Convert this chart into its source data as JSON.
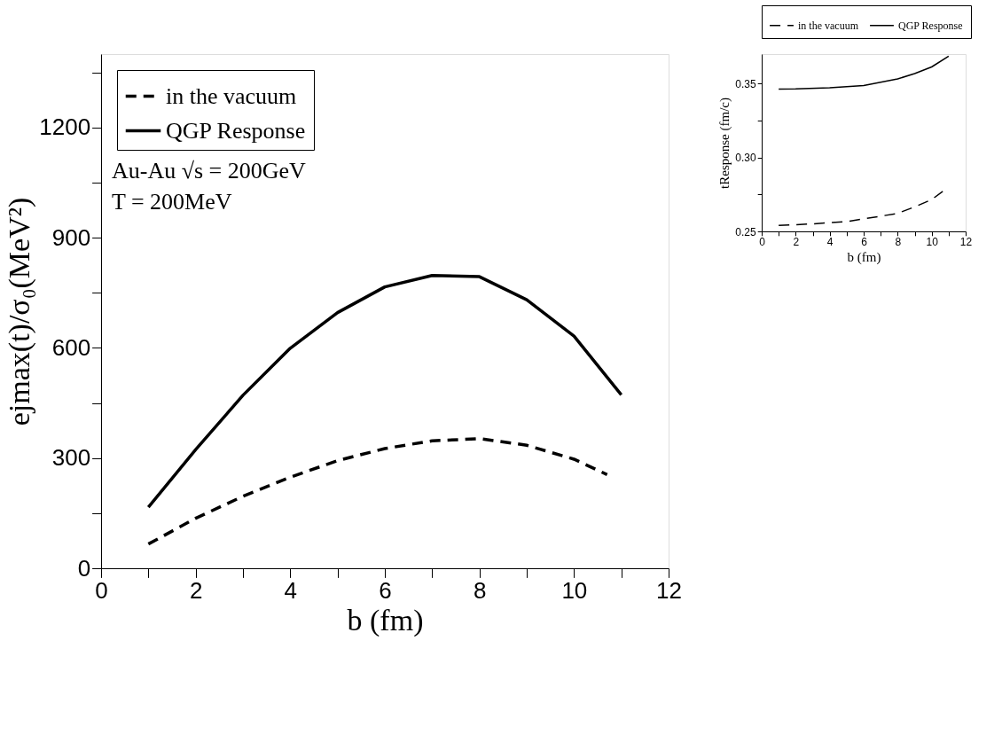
{
  "chart_data": [
    {
      "type": "line",
      "xlabel": "b (fm)",
      "ylabel": "ejmax(t)/σ₀(MeV²)",
      "xlim": [
        0,
        12
      ],
      "ylim": [
        0,
        1400
      ],
      "xticks": [
        0,
        {
          "value": 1,
          "label": null
        },
        2,
        {
          "value": 3,
          "label": null
        },
        4,
        {
          "value": 5,
          "label": null
        },
        6,
        {
          "value": 7,
          "label": null
        },
        8,
        {
          "value": 9,
          "label": null
        },
        10,
        {
          "value": 11,
          "label": null
        },
        12
      ],
      "yticks": [
        0,
        {
          "value": 150,
          "label": null
        },
        300,
        {
          "value": 450,
          "label": null
        },
        600,
        {
          "value": 750,
          "label": null
        },
        900,
        {
          "value": 1050,
          "label": null
        },
        1200,
        {
          "value": 1350,
          "label": null
        }
      ],
      "grid": false,
      "legend": "top left",
      "annotations": [
        "Au-Au √s = 200GeV",
        "T = 200MeV"
      ],
      "series": [
        {
          "name": "in the vacuum",
          "color": "#000000",
          "line_style": "dashed",
          "x": [
            1,
            2,
            3,
            4,
            5,
            6,
            7,
            8,
            9,
            10,
            10.7
          ],
          "values": [
            66,
            136,
            196,
            248,
            293,
            326,
            347,
            353,
            335,
            297,
            255
          ]
        },
        {
          "name": "QGP Response",
          "color": "#000000",
          "line_style": "solid",
          "x": [
            1,
            2,
            3,
            4,
            5,
            6,
            7,
            8,
            9,
            10,
            11
          ],
          "values": [
            166,
            323,
            471,
            599,
            696,
            766,
            797,
            794,
            731,
            632,
            472
          ]
        }
      ]
    },
    {
      "type": "line",
      "xlabel": "b (fm)",
      "ylabel": "tResponse (fm/c)",
      "xlim": [
        0,
        12
      ],
      "ylim": [
        0.25,
        0.37
      ],
      "xticks": [
        0,
        {
          "value": 1,
          "label": null
        },
        2,
        {
          "value": 3,
          "label": null
        },
        4,
        {
          "value": 5,
          "label": null
        },
        6,
        {
          "value": 7,
          "label": null
        },
        8,
        {
          "value": 9,
          "label": null
        },
        10,
        {
          "value": 11,
          "label": null
        },
        12
      ],
      "yticks": [
        0.25,
        {
          "value": 0.275,
          "label": null
        },
        {
          "value": 0.3,
          "label": "0.30"
        },
        {
          "value": 0.325,
          "label": null
        },
        0.35
      ],
      "grid": false,
      "legend": "top",
      "series": [
        {
          "name": "in the vacuum",
          "color": "#000000",
          "line_style": "dashed",
          "x": [
            1,
            3,
            5,
            7,
            8,
            9,
            10,
            10.7
          ],
          "values": [
            0.254,
            0.2551,
            0.2566,
            0.2603,
            0.2622,
            0.2666,
            0.2715,
            0.2775
          ]
        },
        {
          "name": "QGP Response",
          "color": "#000000",
          "line_style": "solid",
          "x": [
            1,
            2,
            4,
            6,
            8,
            9,
            10,
            11
          ],
          "values": [
            0.3463,
            0.3464,
            0.3472,
            0.3487,
            0.3532,
            0.3568,
            0.3613,
            0.3686
          ]
        }
      ]
    }
  ]
}
